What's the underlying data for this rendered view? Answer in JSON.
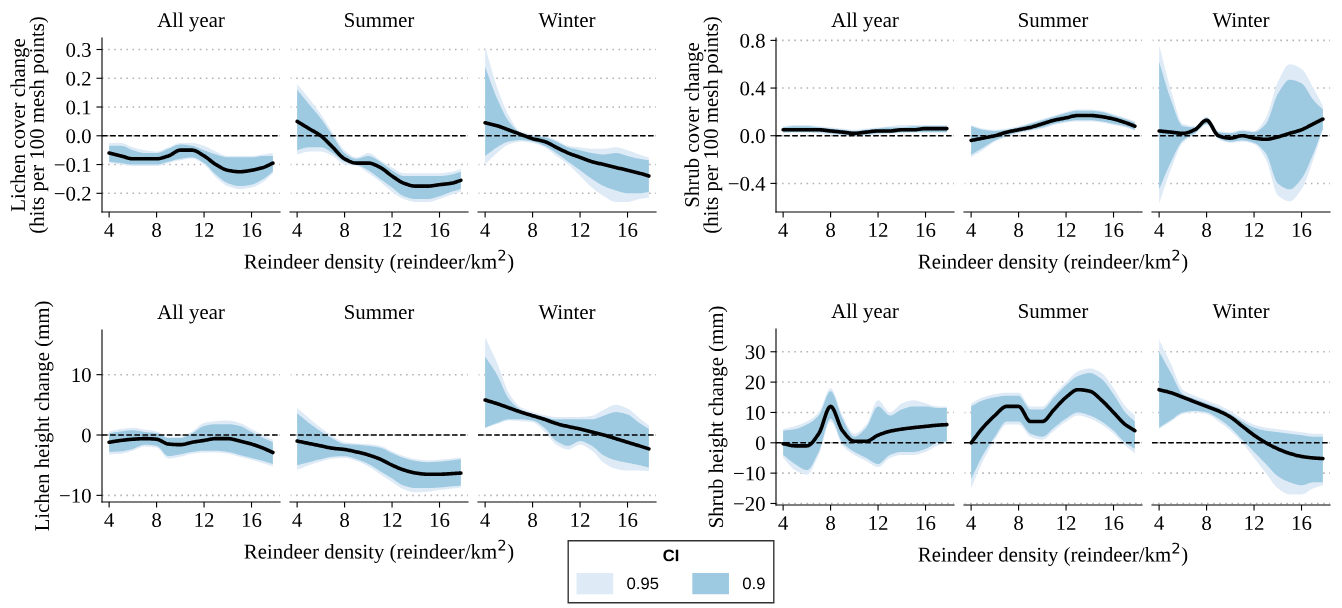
{
  "chart_data": [
    {
      "type": "line",
      "title": "All year",
      "ylabel": "Lichen cover change\n(hits per 100 mesh points)",
      "x": [
        4,
        5,
        6,
        7,
        8,
        9,
        10,
        11,
        12,
        13,
        14,
        15,
        16,
        17,
        17.8
      ],
      "xlim": [
        3.4,
        18.4
      ],
      "xticks": [
        4,
        8,
        12,
        16
      ],
      "ylim": [
        -0.265,
        0.34
      ],
      "yticks": [
        {
          "value": -0.2,
          "label": "−0.2"
        },
        {
          "value": -0.1,
          "label": "−0.1"
        },
        {
          "value": 0,
          "label": "0.0"
        },
        {
          "value": 0.1,
          "label": "0.1"
        },
        {
          "value": 0.2,
          "label": "0.2"
        },
        {
          "value": 0.3,
          "label": "0.3"
        }
      ],
      "grid": "y",
      "ref_lines": [
        {
          "axis": "y",
          "value": 0,
          "color": "#000000",
          "line_style": "dashed"
        }
      ],
      "line_style": "solid",
      "legend": "bottom",
      "legend_title": "CI",
      "series": [
        {
          "name": "0.95",
          "color": "#deebf7",
          "values": [
            null,
            null,
            null,
            null,
            null,
            null,
            null,
            null,
            null,
            null,
            null,
            null,
            null,
            null,
            null
          ],
          "lower": [
            -0.095,
            -0.1,
            -0.105,
            -0.105,
            -0.105,
            -0.095,
            -0.085,
            -0.08,
            -0.1,
            -0.145,
            -0.175,
            -0.185,
            -0.18,
            -0.16,
            -0.13
          ],
          "upper": [
            -0.025,
            -0.025,
            -0.04,
            -0.05,
            -0.055,
            -0.04,
            -0.025,
            -0.025,
            -0.035,
            -0.055,
            -0.07,
            -0.07,
            -0.07,
            -0.065,
            -0.06
          ]
        },
        {
          "name": "0.9",
          "color": "#9ecae1",
          "values": [
            null,
            null,
            null,
            null,
            null,
            null,
            null,
            null,
            null,
            null,
            null,
            null,
            null,
            null,
            null
          ],
          "lower": [
            -0.09,
            -0.095,
            -0.1,
            -0.1,
            -0.1,
            -0.09,
            -0.08,
            -0.075,
            -0.095,
            -0.135,
            -0.165,
            -0.175,
            -0.17,
            -0.15,
            -0.125
          ],
          "upper": [
            -0.035,
            -0.035,
            -0.05,
            -0.06,
            -0.06,
            -0.045,
            -0.03,
            -0.035,
            -0.05,
            -0.065,
            -0.075,
            -0.075,
            -0.075,
            -0.07,
            -0.07
          ]
        },
        {
          "color": "#000000",
          "values": [
            -0.06,
            -0.07,
            -0.08,
            -0.08,
            -0.08,
            -0.07,
            -0.05,
            -0.05,
            -0.07,
            -0.1,
            -0.12,
            -0.125,
            -0.12,
            -0.11,
            -0.095
          ]
        }
      ]
    },
    {
      "type": "line",
      "title": "Summer",
      "xlabel": "Reindeer density (reindeer/km$^{2}$)",
      "x": [
        4,
        5,
        6,
        7,
        8,
        9,
        10,
        11,
        12,
        13,
        14,
        15,
        16,
        17,
        17.8
      ],
      "xlim": [
        3.4,
        18.4
      ],
      "xticks": [
        4,
        8,
        12,
        16
      ],
      "ylim": [
        -0.265,
        0.34
      ],
      "yticks": [
        -0.2,
        -0.1,
        0,
        0.1,
        0.2,
        0.3
      ],
      "tick_labels": "x",
      "grid": "y",
      "ref_lines": [
        {
          "axis": "y",
          "value": 0,
          "color": "#000000",
          "line_style": "dashed"
        }
      ],
      "line_style": "solid",
      "series": [
        {
          "color": "#deebf7",
          "values": [
            null,
            null,
            null,
            null,
            null,
            null,
            null,
            null,
            null,
            null,
            null,
            null,
            null,
            null,
            null
          ],
          "lower": [
            -0.065,
            -0.055,
            -0.055,
            -0.07,
            -0.1,
            -0.105,
            -0.13,
            -0.16,
            -0.195,
            -0.22,
            -0.23,
            -0.23,
            -0.22,
            -0.205,
            -0.195
          ],
          "upper": [
            0.18,
            0.13,
            0.075,
            0.01,
            -0.05,
            -0.075,
            -0.06,
            -0.085,
            -0.11,
            -0.13,
            -0.13,
            -0.13,
            -0.13,
            -0.125,
            -0.115
          ]
        },
        {
          "color": "#9ecae1",
          "values": [
            null,
            null,
            null,
            null,
            null,
            null,
            null,
            null,
            null,
            null,
            null,
            null,
            null,
            null,
            null
          ],
          "lower": [
            -0.05,
            -0.04,
            -0.04,
            -0.06,
            -0.09,
            -0.1,
            -0.12,
            -0.15,
            -0.18,
            -0.21,
            -0.22,
            -0.22,
            -0.21,
            -0.195,
            -0.185
          ],
          "upper": [
            0.16,
            0.11,
            0.06,
            0.0,
            -0.06,
            -0.08,
            -0.07,
            -0.09,
            -0.12,
            -0.14,
            -0.14,
            -0.14,
            -0.14,
            -0.135,
            -0.125
          ]
        },
        {
          "color": "#000000",
          "values": [
            0.05,
            0.025,
            0,
            -0.04,
            -0.08,
            -0.095,
            -0.095,
            -0.11,
            -0.14,
            -0.165,
            -0.175,
            -0.175,
            -0.17,
            -0.165,
            -0.155
          ]
        }
      ]
    },
    {
      "type": "line",
      "title": "Winter",
      "x": [
        4,
        5,
        6,
        7,
        8,
        9,
        10,
        11,
        12,
        13,
        14,
        15,
        16,
        17,
        17.8
      ],
      "xlim": [
        3.4,
        18.4
      ],
      "xticks": [
        4,
        8,
        12,
        16
      ],
      "ylim": [
        -0.265,
        0.34
      ],
      "yticks": [
        -0.2,
        -0.1,
        0,
        0.1,
        0.2,
        0.3
      ],
      "tick_labels": "x",
      "grid": "y",
      "ref_lines": [
        {
          "axis": "y",
          "value": 0,
          "color": "#000000",
          "line_style": "dashed"
        }
      ],
      "line_style": "solid",
      "series": [
        {
          "color": "#deebf7",
          "values": [
            null,
            null,
            null,
            null,
            null,
            null,
            null,
            null,
            null,
            null,
            null,
            null,
            null,
            null,
            null
          ],
          "lower": [
            -0.1,
            -0.06,
            -0.03,
            -0.02,
            -0.025,
            -0.04,
            -0.07,
            -0.1,
            -0.14,
            -0.18,
            -0.21,
            -0.23,
            -0.23,
            -0.22,
            -0.215
          ],
          "upper": [
            0.31,
            0.17,
            0.07,
            0.015,
            0.005,
            0.0,
            -0.015,
            -0.035,
            -0.04,
            -0.045,
            -0.045,
            -0.04,
            -0.05,
            -0.065,
            -0.075
          ]
        },
        {
          "color": "#9ecae1",
          "values": [
            null,
            null,
            null,
            null,
            null,
            null,
            null,
            null,
            null,
            null,
            null,
            null,
            null,
            null,
            null
          ],
          "lower": [
            -0.07,
            -0.04,
            -0.02,
            -0.015,
            -0.02,
            -0.035,
            -0.06,
            -0.09,
            -0.12,
            -0.15,
            -0.175,
            -0.19,
            -0.2,
            -0.2,
            -0.195
          ],
          "upper": [
            0.24,
            0.13,
            0.05,
            0.01,
            0.0,
            -0.005,
            -0.02,
            -0.04,
            -0.05,
            -0.06,
            -0.065,
            -0.06,
            -0.07,
            -0.08,
            -0.085
          ]
        },
        {
          "color": "#000000",
          "values": [
            0.045,
            0.035,
            0.02,
            0.005,
            -0.01,
            -0.02,
            -0.04,
            -0.06,
            -0.075,
            -0.09,
            -0.1,
            -0.11,
            -0.12,
            -0.13,
            -0.14
          ]
        }
      ]
    },
    {
      "type": "line",
      "title": "All year",
      "ylabel": "Shrub cover change\n(hits per 100 mesh points)",
      "x": [
        4,
        5,
        6,
        7,
        8,
        9,
        10,
        11,
        12,
        13,
        14,
        15,
        16,
        17,
        17.8
      ],
      "xlim": [
        3.4,
        18.4
      ],
      "xticks": [
        4,
        8,
        12,
        16
      ],
      "ylim": [
        -0.64,
        0.82
      ],
      "yticks": [
        {
          "value": -0.4,
          "label": "−0.4"
        },
        {
          "value": 0,
          "label": "0.0"
        },
        {
          "value": 0.4,
          "label": "0.4"
        },
        {
          "value": 0.8,
          "label": "0.8"
        }
      ],
      "grid": "y",
      "ref_lines": [
        {
          "axis": "y",
          "value": 0,
          "color": "#000000",
          "line_style": "dashed"
        }
      ],
      "line_style": "solid",
      "series": [
        {
          "color": "#deebf7",
          "values": [
            null,
            null,
            null,
            null,
            null,
            null,
            null,
            null,
            null,
            null,
            null,
            null,
            null,
            null,
            null
          ],
          "lower": [
            0.02,
            0.03,
            0.03,
            0.02,
            0.01,
            0.0,
            0.0,
            0.0,
            0.01,
            0.02,
            0.02,
            0.03,
            0.03,
            0.03,
            0.03
          ],
          "upper": [
            0.08,
            0.09,
            0.09,
            0.08,
            0.07,
            0.06,
            0.05,
            0.06,
            0.07,
            0.08,
            0.09,
            0.09,
            0.09,
            0.09,
            0.09
          ]
        },
        {
          "color": "#9ecae1",
          "values": [
            null,
            null,
            null,
            null,
            null,
            null,
            null,
            null,
            null,
            null,
            null,
            null,
            null,
            null,
            null
          ],
          "lower": [
            0.03,
            0.03,
            0.03,
            0.03,
            0.02,
            0.01,
            0.0,
            0.01,
            0.02,
            0.02,
            0.03,
            0.03,
            0.03,
            0.03,
            0.03
          ],
          "upper": [
            0.07,
            0.08,
            0.08,
            0.07,
            0.06,
            0.05,
            0.04,
            0.05,
            0.06,
            0.07,
            0.07,
            0.08,
            0.08,
            0.08,
            0.08
          ]
        },
        {
          "color": "#000000",
          "values": [
            0.05,
            0.05,
            0.05,
            0.05,
            0.04,
            0.03,
            0.02,
            0.03,
            0.04,
            0.04,
            0.05,
            0.05,
            0.06,
            0.06,
            0.06
          ]
        }
      ]
    },
    {
      "type": "line",
      "title": "Summer",
      "xlabel": "Reindeer density (reindeer/km$^{2}$)",
      "x": [
        4,
        5,
        6,
        7,
        8,
        9,
        10,
        11,
        12,
        13,
        14,
        15,
        16,
        17,
        17.8
      ],
      "xlim": [
        3.4,
        18.4
      ],
      "xticks": [
        4,
        8,
        12,
        16
      ],
      "ylim": [
        -0.64,
        0.82
      ],
      "yticks": [
        -0.4,
        0,
        0.4,
        0.8
      ],
      "tick_labels": "x",
      "grid": "y",
      "ref_lines": [
        {
          "axis": "y",
          "value": 0,
          "color": "#000000",
          "line_style": "dashed"
        }
      ],
      "line_style": "solid",
      "series": [
        {
          "color": "#deebf7",
          "values": [
            null,
            null,
            null,
            null,
            null,
            null,
            null,
            null,
            null,
            null,
            null,
            null,
            null,
            null,
            null
          ],
          "lower": [
            -0.18,
            -0.12,
            -0.05,
            -0.01,
            0.02,
            0.04,
            0.06,
            0.09,
            0.11,
            0.12,
            0.12,
            0.11,
            0.09,
            0.07,
            0.04
          ],
          "upper": [
            0.09,
            0.06,
            0.05,
            0.06,
            0.08,
            0.11,
            0.14,
            0.17,
            0.2,
            0.22,
            0.22,
            0.21,
            0.18,
            0.15,
            0.12
          ]
        },
        {
          "color": "#9ecae1",
          "values": [
            null,
            null,
            null,
            null,
            null,
            null,
            null,
            null,
            null,
            null,
            null,
            null,
            null,
            null,
            null
          ],
          "lower": [
            -0.16,
            -0.1,
            -0.04,
            0.0,
            0.03,
            0.05,
            0.07,
            0.1,
            0.12,
            0.13,
            0.13,
            0.12,
            0.1,
            0.08,
            0.05
          ],
          "upper": [
            0.08,
            0.05,
            0.04,
            0.05,
            0.07,
            0.1,
            0.13,
            0.16,
            0.19,
            0.21,
            0.21,
            0.2,
            0.17,
            0.14,
            0.11
          ]
        },
        {
          "color": "#000000",
          "values": [
            -0.04,
            -0.02,
            0.0,
            0.03,
            0.05,
            0.07,
            0.1,
            0.13,
            0.15,
            0.17,
            0.17,
            0.16,
            0.14,
            0.11,
            0.08
          ]
        }
      ]
    },
    {
      "type": "line",
      "title": "Winter",
      "x": [
        4,
        5,
        6,
        7,
        8,
        9,
        10,
        11,
        12,
        13,
        14,
        15,
        16,
        17,
        17.8
      ],
      "xlim": [
        3.4,
        18.4
      ],
      "xticks": [
        4,
        8,
        12,
        16
      ],
      "ylim": [
        -0.64,
        0.82
      ],
      "yticks": [
        -0.4,
        0,
        0.4,
        0.8
      ],
      "tick_labels": "x",
      "grid": "y",
      "ref_lines": [
        {
          "axis": "y",
          "value": 0,
          "color": "#000000",
          "line_style": "dashed"
        }
      ],
      "line_style": "solid",
      "series": [
        {
          "color": "#deebf7",
          "values": [
            null,
            null,
            null,
            null,
            null,
            null,
            null,
            null,
            null,
            null,
            null,
            null,
            null,
            null,
            null
          ],
          "lower": [
            -0.57,
            -0.28,
            -0.06,
            0.01,
            0.09,
            -0.03,
            -0.06,
            -0.05,
            -0.07,
            -0.2,
            -0.5,
            -0.55,
            -0.45,
            -0.2,
            0.05
          ],
          "upper": [
            0.76,
            0.38,
            0.1,
            0.08,
            0.16,
            0.04,
            0.03,
            0.05,
            0.04,
            0.15,
            0.45,
            0.6,
            0.56,
            0.4,
            0.25
          ]
        },
        {
          "color": "#9ecae1",
          "values": [
            null,
            null,
            null,
            null,
            null,
            null,
            null,
            null,
            null,
            null,
            null,
            null,
            null,
            null,
            null
          ],
          "lower": [
            -0.45,
            -0.22,
            -0.04,
            0.02,
            0.1,
            -0.02,
            -0.05,
            -0.04,
            -0.06,
            -0.15,
            -0.4,
            -0.45,
            -0.36,
            -0.15,
            0.06
          ],
          "upper": [
            0.62,
            0.3,
            0.08,
            0.07,
            0.15,
            0.03,
            0.02,
            0.04,
            0.03,
            0.1,
            0.35,
            0.47,
            0.44,
            0.3,
            0.22
          ]
        },
        {
          "color": "#000000",
          "values": [
            0.04,
            0.03,
            0.02,
            0.05,
            0.13,
            0.0,
            -0.02,
            0.0,
            -0.02,
            -0.03,
            -0.01,
            0.02,
            0.05,
            0.1,
            0.14
          ]
        }
      ]
    },
    {
      "type": "line",
      "title": "All year",
      "ylabel": "Lichen height change (mm)",
      "x": [
        4,
        5,
        6,
        7,
        8,
        9,
        10,
        11,
        12,
        13,
        14,
        15,
        16,
        17,
        17.8
      ],
      "xlim": [
        3.4,
        18.4
      ],
      "xticks": [
        4,
        8,
        12,
        16
      ],
      "ylim": [
        -11.1,
        17.4
      ],
      "yticks": [
        {
          "value": -10,
          "label": "−10"
        },
        0,
        10
      ],
      "grid": "y",
      "ref_lines": [
        {
          "axis": "y",
          "value": 0,
          "color": "#000000",
          "line_style": "dashed"
        }
      ],
      "line_style": "solid",
      "series": [
        {
          "color": "#deebf7",
          "values": [
            null,
            null,
            null,
            null,
            null,
            null,
            null,
            null,
            null,
            null,
            null,
            null,
            null,
            null,
            null
          ],
          "lower": [
            -3.2,
            -3.1,
            -2.6,
            -1.9,
            -2.1,
            -3.9,
            -3.6,
            -3.1,
            -2.9,
            -2.9,
            -3.1,
            -3.6,
            -4.1,
            -4.7,
            -5.2
          ],
          "upper": [
            0.6,
            1.0,
            1.2,
            0.9,
            0.6,
            -0.3,
            -0.3,
            0.6,
            2.0,
            2.3,
            2.4,
            2.0,
            1.0,
            0,
            -0.8
          ]
        },
        {
          "color": "#9ecae1",
          "values": [
            null,
            null,
            null,
            null,
            null,
            null,
            null,
            null,
            null,
            null,
            null,
            null,
            null,
            null,
            null
          ],
          "lower": [
            -2.8,
            -2.7,
            -2.3,
            -1.6,
            -1.8,
            -3.5,
            -3.2,
            -2.8,
            -2.6,
            -2.6,
            -2.8,
            -3.3,
            -3.8,
            -4.3,
            -4.8
          ],
          "upper": [
            0.3,
            0.6,
            0.8,
            0.5,
            0.3,
            -0.5,
            -0.5,
            0.3,
            1.5,
            1.8,
            1.8,
            1.5,
            0.5,
            -0.5,
            -1.2
          ]
        },
        {
          "color": "#000000",
          "values": [
            -1.2,
            -0.9,
            -0.7,
            -0.6,
            -0.7,
            -1.5,
            -1.6,
            -1.2,
            -0.9,
            -0.6,
            -0.6,
            -1.0,
            -1.5,
            -2.2,
            -2.9
          ]
        }
      ]
    },
    {
      "type": "line",
      "title": "Summer",
      "xlabel": "Reindeer density (reindeer/km$^{2}$)",
      "x": [
        4,
        5,
        6,
        7,
        8,
        9,
        10,
        11,
        12,
        13,
        14,
        15,
        16,
        17,
        17.8
      ],
      "xlim": [
        3.4,
        18.4
      ],
      "xticks": [
        4,
        8,
        12,
        16
      ],
      "ylim": [
        -11.1,
        17.4
      ],
      "yticks": [
        -10,
        0,
        10
      ],
      "tick_labels": "x",
      "grid": "y",
      "ref_lines": [
        {
          "axis": "y",
          "value": 0,
          "color": "#000000",
          "line_style": "dashed"
        }
      ],
      "line_style": "solid",
      "series": [
        {
          "color": "#deebf7",
          "values": [
            null,
            null,
            null,
            null,
            null,
            null,
            null,
            null,
            null,
            null,
            null,
            null,
            null,
            null,
            null
          ],
          "lower": [
            -5.8,
            -5.0,
            -4.4,
            -3.9,
            -3.8,
            -4.3,
            -5.2,
            -6.5,
            -7.8,
            -9.0,
            -9.5,
            -9.4,
            -9.1,
            -8.9,
            -8.7
          ],
          "upper": [
            4.5,
            2.8,
            1.2,
            -0.2,
            -1.2,
            -1.4,
            -1.5,
            -1.8,
            -2.7,
            -3.5,
            -4.0,
            -4.2,
            -4.1,
            -3.9,
            -3.7
          ]
        },
        {
          "color": "#9ecae1",
          "values": [
            null,
            null,
            null,
            null,
            null,
            null,
            null,
            null,
            null,
            null,
            null,
            null,
            null,
            null,
            null
          ],
          "lower": [
            -5.0,
            -4.5,
            -4.0,
            -3.6,
            -3.5,
            -4.0,
            -4.8,
            -6.0,
            -7.2,
            -8.4,
            -8.8,
            -8.8,
            -8.7,
            -8.5,
            -8.4
          ],
          "upper": [
            3.6,
            2.0,
            0.6,
            -0.6,
            -1.5,
            -1.6,
            -1.8,
            -2.1,
            -3.0,
            -3.8,
            -4.3,
            -4.5,
            -4.4,
            -4.2,
            -4.0
          ]
        },
        {
          "color": "#000000",
          "values": [
            -1.0,
            -1.4,
            -1.8,
            -2.2,
            -2.4,
            -2.8,
            -3.3,
            -4.0,
            -5.0,
            -5.8,
            -6.3,
            -6.5,
            -6.5,
            -6.4,
            -6.3
          ]
        }
      ]
    },
    {
      "type": "line",
      "title": "Winter",
      "x": [
        4,
        5,
        6,
        7,
        8,
        9,
        10,
        11,
        12,
        13,
        14,
        15,
        16,
        17,
        17.8
      ],
      "xlim": [
        3.4,
        18.4
      ],
      "xticks": [
        4,
        8,
        12,
        16
      ],
      "ylim": [
        -11.1,
        17.4
      ],
      "yticks": [
        -10,
        0,
        10
      ],
      "tick_labels": "x",
      "grid": "y",
      "ref_lines": [
        {
          "axis": "y",
          "value": 0,
          "color": "#000000",
          "line_style": "dashed"
        }
      ],
      "line_style": "solid",
      "series": [
        {
          "color": "#deebf7",
          "values": [
            null,
            null,
            null,
            null,
            null,
            null,
            null,
            null,
            null,
            null,
            null,
            null,
            null,
            null,
            null
          ],
          "lower": [
            1.2,
            1.8,
            2.4,
            2.3,
            2.1,
            0.6,
            -1.6,
            -2.4,
            -1.6,
            -2.6,
            -4.6,
            -5.6,
            -5.9,
            -5.9,
            -6.0
          ],
          "upper": [
            16.2,
            12.0,
            7.0,
            4.6,
            3.8,
            3.3,
            3.0,
            3.0,
            3.0,
            3.2,
            4.2,
            5.0,
            4.4,
            2.8,
            1.6
          ]
        },
        {
          "color": "#9ecae1",
          "values": [
            null,
            null,
            null,
            null,
            null,
            null,
            null,
            null,
            null,
            null,
            null,
            null,
            null,
            null,
            null
          ],
          "lower": [
            1.2,
            2.0,
            2.6,
            2.6,
            2.4,
            1.2,
            -1.0,
            -1.8,
            -1.0,
            -1.8,
            -3.4,
            -4.2,
            -4.6,
            -5.0,
            -5.4
          ],
          "upper": [
            13.0,
            10.0,
            6.0,
            4.2,
            3.5,
            3.0,
            2.6,
            2.6,
            2.6,
            2.6,
            3.2,
            3.8,
            3.4,
            2.0,
            1.0
          ]
        },
        {
          "color": "#000000",
          "values": [
            5.8,
            5.2,
            4.5,
            3.8,
            3.2,
            2.6,
            1.9,
            1.4,
            1.0,
            0.5,
            0.0,
            -0.6,
            -1.2,
            -1.8,
            -2.3
          ]
        }
      ]
    },
    {
      "type": "line",
      "title": "All year",
      "ylabel": "Shrub height change (mm)",
      "x": [
        4,
        5,
        6,
        7,
        8,
        9,
        10,
        11,
        12,
        13,
        14,
        15,
        16,
        17,
        17.8
      ],
      "xlim": [
        3.4,
        18.4
      ],
      "xticks": [
        4,
        8,
        12,
        16
      ],
      "ylim": [
        -20.5,
        37.5
      ],
      "yticks": [
        {
          "value": -20,
          "label": "−20"
        },
        {
          "value": -10,
          "label": "−10"
        },
        0,
        10,
        20,
        30
      ],
      "grid": "y",
      "ref_lines": [
        {
          "axis": "y",
          "value": 0,
          "color": "#000000",
          "line_style": "dashed"
        }
      ],
      "line_style": "solid",
      "series": [
        {
          "color": "#deebf7",
          "values": [
            null,
            null,
            null,
            null,
            null,
            null,
            null,
            null,
            null,
            null,
            null,
            null,
            null,
            null,
            null
          ],
          "lower": [
            -5,
            -9,
            -10.5,
            -4,
            7,
            -1,
            -4,
            -6,
            -8,
            -5,
            -4,
            -4,
            -3,
            -1,
            0
          ],
          "upper": [
            4.5,
            5.5,
            7,
            10,
            18,
            9,
            3,
            6,
            14,
            10,
            13,
            14,
            13,
            12,
            12
          ]
        },
        {
          "color": "#9ecae1",
          "values": [
            null,
            null,
            null,
            null,
            null,
            null,
            null,
            null,
            null,
            null,
            null,
            null,
            null,
            null,
            null
          ],
          "lower": [
            -4,
            -7,
            -9,
            -3,
            8,
            0,
            -3,
            -5,
            -7,
            -4,
            -3,
            -3,
            -2,
            0,
            0.5
          ],
          "upper": [
            4,
            4.5,
            6,
            9,
            17,
            8,
            2,
            5,
            12,
            9,
            11,
            12,
            12,
            11.5,
            11.5
          ]
        },
        {
          "color": "#000000",
          "values": [
            -0.3,
            -1,
            -1,
            3,
            12,
            4,
            0.5,
            0.5,
            2.5,
            3.8,
            4.5,
            5,
            5.4,
            5.8,
            6
          ]
        }
      ]
    },
    {
      "type": "line",
      "title": "Summer",
      "xlabel": "Reindeer density (reindeer/km$^{2}$)",
      "x": [
        4,
        5,
        6,
        7,
        8,
        9,
        10,
        11,
        12,
        13,
        14,
        15,
        16,
        17,
        17.8
      ],
      "xlim": [
        3.4,
        18.4
      ],
      "xticks": [
        4,
        8,
        12,
        16
      ],
      "ylim": [
        -20.5,
        37.5
      ],
      "yticks": [
        -20,
        -10,
        0,
        10,
        20,
        30
      ],
      "tick_labels": "x",
      "grid": "y",
      "ref_lines": [
        {
          "axis": "y",
          "value": 0,
          "color": "#000000",
          "line_style": "dashed"
        }
      ],
      "line_style": "solid",
      "series": [
        {
          "color": "#deebf7",
          "values": [
            null,
            null,
            null,
            null,
            null,
            null,
            null,
            null,
            null,
            null,
            null,
            null,
            null,
            null,
            null
          ],
          "lower": [
            -15,
            -6,
            1,
            6,
            6,
            2,
            1,
            4,
            7,
            9,
            8,
            6,
            3,
            -1,
            -3.5
          ],
          "upper": [
            13,
            15,
            16,
            16.5,
            16.5,
            12,
            12,
            16,
            20,
            23.5,
            24.5,
            23,
            18,
            12,
            9
          ]
        },
        {
          "color": "#9ecae1",
          "values": [
            null,
            null,
            null,
            null,
            null,
            null,
            null,
            null,
            null,
            null,
            null,
            null,
            null,
            null,
            null
          ],
          "lower": [
            -12,
            -4,
            2,
            7,
            7,
            3,
            2,
            5,
            8,
            10,
            9,
            7,
            4,
            0,
            -2
          ],
          "upper": [
            12,
            14,
            15,
            15.5,
            15.5,
            11,
            11,
            15,
            19,
            22,
            23,
            21,
            16,
            10,
            7
          ]
        },
        {
          "color": "#000000",
          "values": [
            0,
            5,
            9,
            12,
            12,
            7,
            7,
            11,
            15,
            17.5,
            17,
            14,
            10,
            6,
            4
          ]
        }
      ]
    },
    {
      "type": "line",
      "title": "Winter",
      "x": [
        4,
        5,
        6,
        7,
        8,
        9,
        10,
        11,
        12,
        13,
        14,
        15,
        16,
        17,
        17.8
      ],
      "xlim": [
        3.4,
        18.4
      ],
      "xticks": [
        4,
        8,
        12,
        16
      ],
      "ylim": [
        -20.5,
        37.5
      ],
      "yticks": [
        -20,
        -10,
        0,
        10,
        20,
        30
      ],
      "tick_labels": "x",
      "grid": "y",
      "ref_lines": [
        {
          "axis": "y",
          "value": 0,
          "color": "#000000",
          "line_style": "dashed"
        }
      ],
      "line_style": "solid",
      "series": [
        {
          "color": "#deebf7",
          "values": [
            null,
            null,
            null,
            null,
            null,
            null,
            null,
            null,
            null,
            null,
            null,
            null,
            null,
            null,
            null
          ],
          "lower": [
            4.5,
            7,
            9.5,
            10,
            9.5,
            7,
            4,
            0,
            -5,
            -10,
            -15,
            -17,
            -17,
            -15,
            -14
          ],
          "upper": [
            34,
            26,
            17.5,
            15.5,
            14,
            12.5,
            10.5,
            8,
            6,
            5,
            4.5,
            4,
            3.5,
            3,
            3
          ]
        },
        {
          "color": "#9ecae1",
          "values": [
            null,
            null,
            null,
            null,
            null,
            null,
            null,
            null,
            null,
            null,
            null,
            null,
            null,
            null,
            null
          ],
          "lower": [
            5,
            7.5,
            10,
            10.5,
            10,
            8,
            5,
            1,
            -3,
            -7,
            -11,
            -13,
            -14,
            -13,
            -13
          ],
          "upper": [
            30,
            23,
            16,
            14.5,
            13,
            11.5,
            9.5,
            7,
            5,
            4,
            3.5,
            3,
            2.5,
            2,
            2
          ]
        },
        {
          "color": "#000000",
          "values": [
            17.5,
            16.5,
            15,
            13.5,
            12,
            10.5,
            8.5,
            5.5,
            2.5,
            0,
            -2,
            -3.5,
            -4.5,
            -5,
            -5.2
          ]
        }
      ]
    }
  ]
}
